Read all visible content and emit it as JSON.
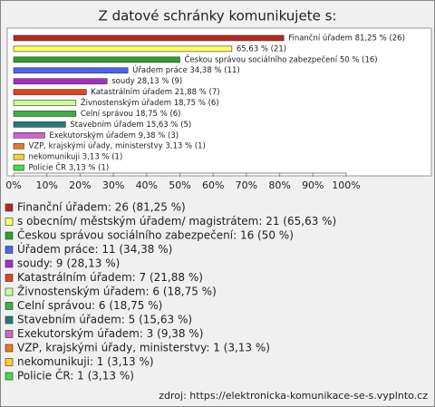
{
  "chart_data": {
    "type": "hbar",
    "title": "Z datové schránky komunikujete s:",
    "categories": [
      "Finanční úřadem",
      "s obecním/ městským úřadem/ magistrátem",
      "Českou správou sociálního zabezpečení",
      "Úřadem práce",
      "soudy",
      "Katastrálním úřadem",
      "Živnostenským úřadem",
      "Celní správou",
      "Stavebním úřadem",
      "Exekutorským úřadem",
      "VZP, krajskými úřady, ministerstvy",
      "nekomunikuji",
      "Policie ČR"
    ],
    "values": [
      81.25,
      65.63,
      50,
      34.38,
      28.13,
      21.88,
      18.75,
      18.75,
      15.63,
      9.38,
      3.13,
      3.13,
      3.13
    ],
    "value_labels": [
      "Finanční úřadem 81,25 % (26)",
      "65,63 % (21)",
      "Českou správou sociálního zabezpečení 50 % (16)",
      "Úřadem práce 34,38 % (11)",
      "soudy 28,13 % (9)",
      "Katastrálním úřadem 21,88 % (7)",
      "Živnostenským úřadem 18,75 % (6)",
      "Celní správou 18,75 % (6)",
      "Stavebním úřadem 15,63 % (5)",
      "Exekutorským úřadem 9,38 % (3)",
      "VZP, krajskými úřady, ministerstvy 3,13 % (1)",
      "nekomunikuji 3,13 % (1)",
      "Policie ČR 3,13 % (1)"
    ],
    "legend": [
      "Finanční úřadem: 26 (81,25 %)",
      "s obecním/ městským úřadem/ magistrátem: 21 (65,63 %)",
      "Českou správou sociálního zabezpečení: 16 (50 %)",
      "Úřadem práce: 11 (34,38 %)",
      "soudy: 9 (28,13 %)",
      "Katastrálním úřadem: 7 (21,88 %)",
      "Živnostenským úřadem: 6 (18,75 %)",
      "Celní správou: 6 (18,75 %)",
      "Stavebním úřadem: 5 (15,63 %)",
      "Exekutorským úřadem: 3 (9,38 %)",
      "VZP, krajskými úřady, ministerstvy: 1 (3,13 %)",
      "nekomunikuji: 1 (3,13 %)",
      "Policie ČR: 1 (3,13 %)"
    ],
    "colors": [
      "#b52a1e",
      "#ffff66",
      "#2ca02c",
      "#4a64f0",
      "#a52fc4",
      "#e0441e",
      "#ccff99",
      "#3cb043",
      "#237a7a",
      "#cc66cc",
      "#ee7722",
      "#ffcc33",
      "#44dd44"
    ],
    "xlim": [
      0,
      100
    ],
    "xticks": [
      {
        "value": 0,
        "label": "0%"
      },
      {
        "value": 10,
        "label": "10%"
      },
      {
        "value": 20,
        "label": "20%"
      },
      {
        "value": 30,
        "label": "30%"
      },
      {
        "value": 40,
        "label": "40%"
      },
      {
        "value": 50,
        "label": "50%"
      },
      {
        "value": 60,
        "label": "60%"
      },
      {
        "value": 70,
        "label": "70%"
      },
      {
        "value": 80,
        "label": "80%"
      },
      {
        "value": 90,
        "label": "90%"
      },
      {
        "value": 100,
        "label": "100%"
      }
    ],
    "source": "zdroj:  https://elektronicka-komunikace-se-s.vyplnto.cz"
  }
}
